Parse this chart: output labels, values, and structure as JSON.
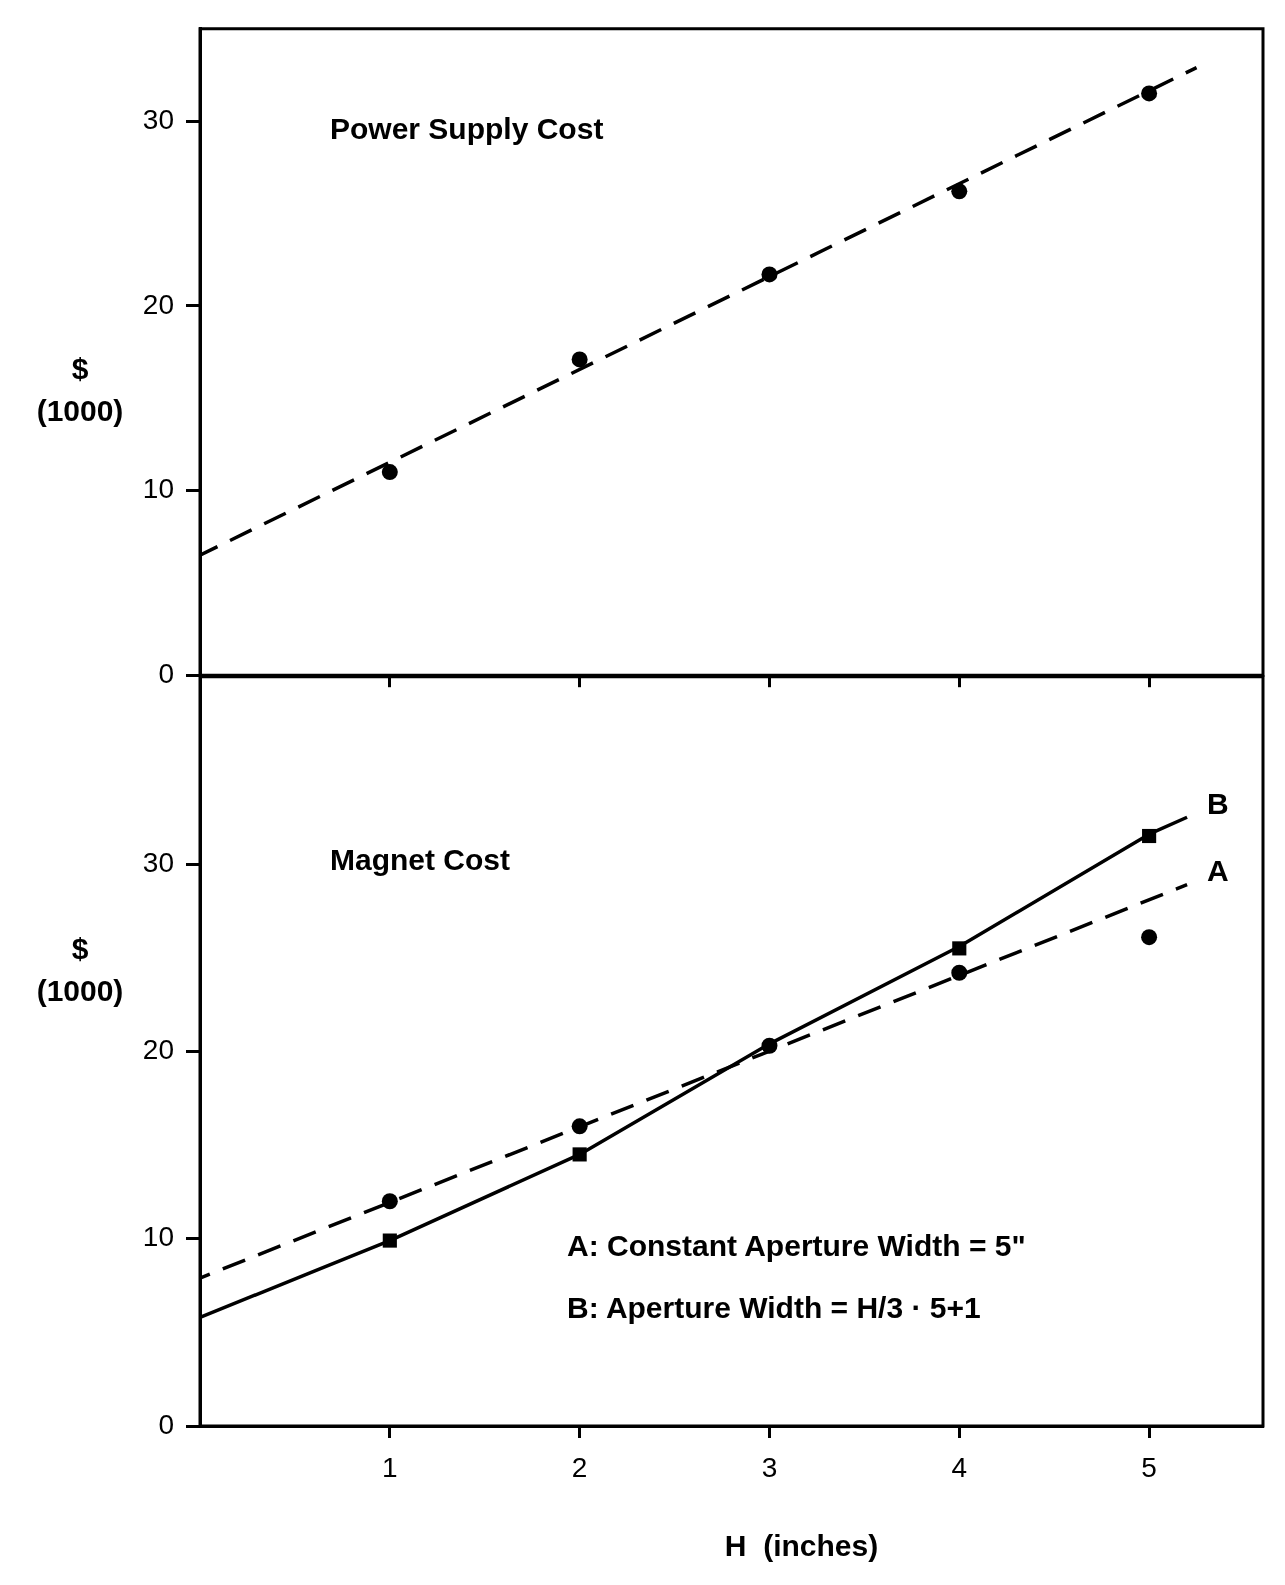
{
  "chart_data": [
    {
      "type": "scatter",
      "title": "Power Supply Cost",
      "ylabel": "$\n(1000)",
      "xlim": [
        0,
        5.6
      ],
      "xticks": [
        1,
        2,
        3,
        4,
        5
      ],
      "ylim": [
        0,
        35
      ],
      "yticks": [
        0,
        10,
        20,
        30
      ],
      "tick_labels": "y",
      "grid": false,
      "legend": false,
      "series": [
        {
          "type": "scatter",
          "color": "#000000",
          "marker": "circle",
          "x": [
            1,
            2,
            3,
            4,
            5
          ],
          "values": [
            11,
            17.1,
            21.7,
            26.2,
            31.5
          ]
        },
        {
          "type": "line",
          "color": "#000000",
          "marker": "none",
          "line_style": "dashed",
          "x": [
            0,
            5.25
          ],
          "values": [
            6.5,
            32.9
          ]
        }
      ]
    },
    {
      "type": "scatter",
      "title": "Magnet Cost",
      "ylabel": "$\n(1000)",
      "xlabel": "H  (inches)",
      "xlim": [
        0,
        5.6
      ],
      "xticks": [
        1,
        2,
        3,
        4,
        5
      ],
      "ylim": [
        0,
        40
      ],
      "yticks": [
        0,
        10,
        20,
        30
      ],
      "grid": false,
      "legend": false,
      "annotations": [
        "A: Constant Aperture Width = 5\"",
        "B: Aperture Width = H/3 · 5+1",
        {
          "text": "A",
          "x": 5.2,
          "y": 28.9
        },
        {
          "text": "B",
          "x": 5.2,
          "y": 32.5
        }
      ],
      "series": [
        {
          "type": "scatter",
          "color": "#000000",
          "marker": "circle",
          "x": [
            1,
            2,
            3,
            4,
            5
          ],
          "values": [
            12,
            16,
            20.3,
            24.2,
            26.1
          ]
        },
        {
          "type": "scatter",
          "color": "#000000",
          "marker": "square",
          "x": [
            1,
            2,
            4,
            5
          ],
          "values": [
            9.9,
            14.5,
            25.5,
            31.5
          ]
        },
        {
          "type": "line",
          "color": "#000000",
          "marker": "none",
          "line_style": "dashed",
          "x": [
            0,
            5.2
          ],
          "values": [
            7.9,
            28.9
          ]
        },
        {
          "type": "line",
          "color": "#000000",
          "marker": "none",
          "line_style": "solid",
          "x": [
            0,
            1,
            2,
            3,
            4,
            5,
            5.2
          ],
          "values": [
            5.8,
            9.9,
            14.5,
            20.4,
            25.6,
            31.6,
            32.5
          ]
        }
      ]
    }
  ]
}
